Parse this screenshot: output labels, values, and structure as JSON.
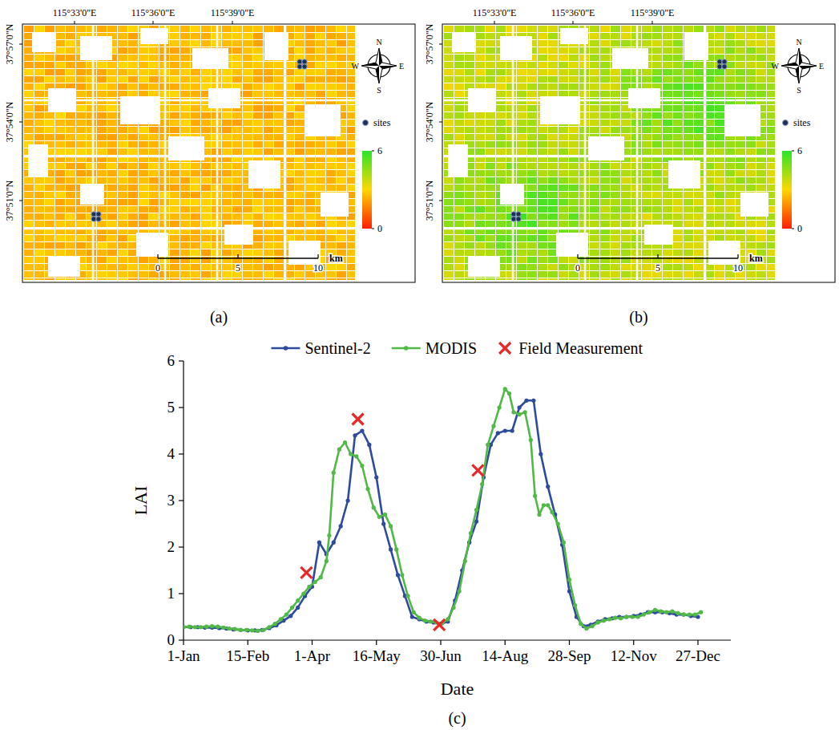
{
  "chart_data": [
    {
      "type": "map",
      "panel": "(a)",
      "x_tick_labels": [
        "115°33'0\"E",
        "115°36'0\"E",
        "115°39'0\"E"
      ],
      "y_tick_labels": [
        "37°57'0\"N",
        "37°54'0\"N",
        "37°51'0\"N"
      ],
      "legend_label": "sites",
      "compass": [
        "N",
        "S",
        "W",
        "E"
      ],
      "colorbar": {
        "range": [
          0,
          6
        ],
        "ticks": [
          0,
          6
        ]
      },
      "scale_bar": {
        "ticks": [
          0,
          5,
          10
        ],
        "unit": "km"
      }
    },
    {
      "type": "map",
      "panel": "(b)",
      "x_tick_labels": [
        "115°33'0\"E",
        "115°36'0\"E",
        "115°39'0\"E"
      ],
      "y_tick_labels": [
        "37°57'0\"N",
        "37°54'0\"N",
        "37°51'0\"N"
      ],
      "legend_label": "sites",
      "compass": [
        "N",
        "S",
        "W",
        "E"
      ],
      "colorbar": {
        "range": [
          0,
          6
        ],
        "ticks": [
          0,
          6
        ]
      },
      "scale_bar": {
        "ticks": [
          0,
          5,
          10
        ],
        "unit": "km"
      }
    },
    {
      "type": "line",
      "panel": "(c)",
      "x_label": "Date",
      "y_label": "LAI",
      "xlim": [
        1,
        384
      ],
      "xticks": [
        {
          "value": 1,
          "label": "1-Jan"
        },
        {
          "value": 46,
          "label": "15-Feb"
        },
        {
          "value": 91,
          "label": "1-Apr"
        },
        {
          "value": 136,
          "label": "16-May"
        },
        {
          "value": 181,
          "label": "30-Jun"
        },
        {
          "value": 226,
          "label": "14-Aug"
        },
        {
          "value": 271,
          "label": "28-Sep"
        },
        {
          "value": 316,
          "label": "12-Nov"
        },
        {
          "value": 361,
          "label": "27-Dec"
        }
      ],
      "ylim": [
        0,
        6
      ],
      "yticks": [
        0,
        1,
        2,
        3,
        4,
        5,
        6
      ],
      "grid": false,
      "legend": "top",
      "series": [
        {
          "name": "Sentinel-2",
          "type": "line",
          "color": "#2f4b9c",
          "marker": "circle",
          "x": [
            1,
            6,
            11,
            16,
            21,
            26,
            31,
            36,
            41,
            46,
            51,
            56,
            61,
            66,
            71,
            76,
            81,
            86,
            91,
            96,
            101,
            106,
            111,
            116,
            121,
            126,
            131,
            136,
            141,
            146,
            151,
            156,
            161,
            166,
            171,
            176,
            181,
            186,
            191,
            196,
            201,
            206,
            211,
            216,
            221,
            226,
            231,
            236,
            241,
            246,
            251,
            256,
            261,
            266,
            271,
            276,
            281,
            286,
            291,
            296,
            301,
            306,
            311,
            316,
            321,
            326,
            331,
            336,
            341,
            346,
            351,
            356,
            361
          ],
          "values": [
            0.28,
            0.28,
            0.28,
            0.27,
            0.27,
            0.26,
            0.25,
            0.23,
            0.22,
            0.21,
            0.21,
            0.22,
            0.26,
            0.32,
            0.42,
            0.52,
            0.7,
            0.95,
            1.15,
            2.1,
            1.85,
            2.1,
            2.45,
            3.0,
            4.4,
            4.5,
            4.2,
            3.5,
            2.5,
            1.95,
            1.4,
            0.95,
            0.5,
            0.45,
            0.4,
            0.38,
            0.35,
            0.4,
            0.85,
            1.5,
            2.1,
            2.55,
            3.5,
            4.2,
            4.45,
            4.5,
            4.5,
            5.0,
            5.15,
            5.15,
            4.0,
            3.3,
            2.7,
            2.05,
            1.05,
            0.5,
            0.3,
            0.33,
            0.4,
            0.45,
            0.47,
            0.5,
            0.5,
            0.52,
            0.55,
            0.6,
            0.6,
            0.6,
            0.58,
            0.55,
            0.55,
            0.52,
            0.5
          ]
        },
        {
          "name": "MODIS",
          "type": "line",
          "color": "#52b848",
          "marker": "circle",
          "x": [
            1,
            5,
            9,
            13,
            17,
            21,
            25,
            29,
            33,
            37,
            41,
            45,
            49,
            53,
            57,
            61,
            65,
            69,
            73,
            77,
            81,
            85,
            89,
            93,
            97,
            101,
            103,
            106,
            110,
            114,
            118,
            122,
            126,
            130,
            134,
            138,
            142,
            146,
            150,
            154,
            158,
            162,
            166,
            170,
            174,
            178,
            182,
            186,
            190,
            194,
            198,
            202,
            206,
            210,
            214,
            218,
            222,
            226,
            229,
            232,
            236,
            240,
            244,
            247,
            250,
            253,
            256,
            259,
            263,
            267,
            271,
            275,
            279,
            283,
            287,
            291,
            295,
            299,
            303,
            307,
            311,
            315,
            319,
            323,
            327,
            331,
            335,
            339,
            343,
            347,
            351,
            355,
            359,
            363
          ],
          "values": [
            0.28,
            0.29,
            0.28,
            0.28,
            0.29,
            0.3,
            0.29,
            0.27,
            0.25,
            0.24,
            0.22,
            0.22,
            0.21,
            0.2,
            0.22,
            0.28,
            0.35,
            0.45,
            0.55,
            0.7,
            0.85,
            1.0,
            1.15,
            1.25,
            1.35,
            1.7,
            2.25,
            3.6,
            4.1,
            4.25,
            4.0,
            3.95,
            3.75,
            3.25,
            2.85,
            2.65,
            2.7,
            2.45,
            1.95,
            1.4,
            0.95,
            0.6,
            0.48,
            0.42,
            0.4,
            0.38,
            0.36,
            0.45,
            0.7,
            1.05,
            1.7,
            2.3,
            2.8,
            3.35,
            4.2,
            4.6,
            5.0,
            5.4,
            5.3,
            4.9,
            4.85,
            4.9,
            4.3,
            3.1,
            2.7,
            2.9,
            2.9,
            2.75,
            2.5,
            2.1,
            1.3,
            0.75,
            0.35,
            0.25,
            0.3,
            0.38,
            0.42,
            0.45,
            0.48,
            0.47,
            0.5,
            0.5,
            0.5,
            0.55,
            0.6,
            0.65,
            0.62,
            0.6,
            0.62,
            0.58,
            0.55,
            0.55,
            0.55,
            0.6
          ]
        },
        {
          "name": "Field Measurement",
          "type": "scatter",
          "color": "#e8282b",
          "marker": "x",
          "x": [
            87,
            123,
            180,
            207
          ],
          "values": [
            1.45,
            4.75,
            0.33,
            3.65
          ]
        }
      ]
    }
  ]
}
